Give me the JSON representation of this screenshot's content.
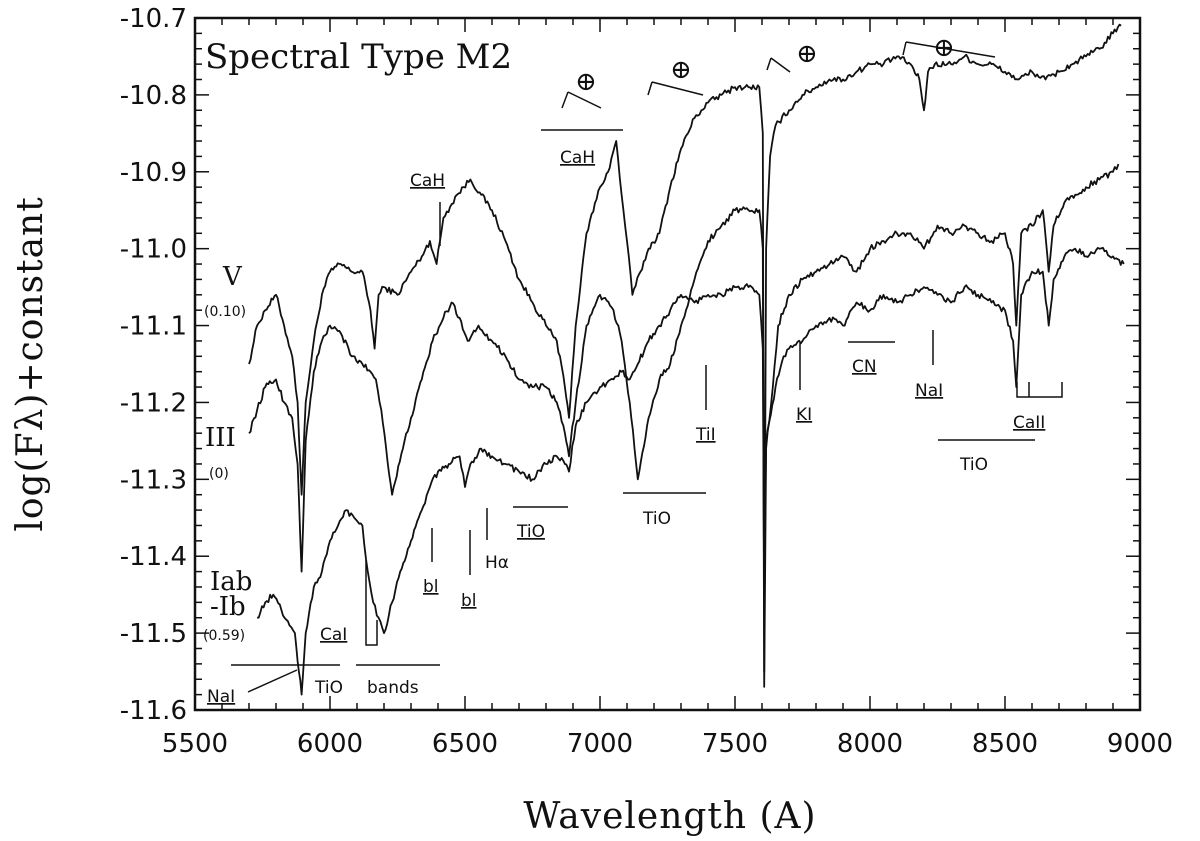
{
  "chart_data": {
    "type": "line",
    "title": "Spectral Type M2",
    "xlabel": "Wavelength (A)",
    "ylabel": "log(Fλ)+constant",
    "xlim": [
      5500,
      9000
    ],
    "ylim": [
      -11.6,
      -10.7
    ],
    "xticks": [
      "5500",
      "6000",
      "6500",
      "7000",
      "7500",
      "8000",
      "8500",
      "9000"
    ],
    "yticks": [
      "-10.7",
      "-10.8",
      "-10.9",
      "-11.0",
      "-11.1",
      "-11.2",
      "-11.3",
      "-11.4",
      "-11.5",
      "-11.6"
    ],
    "grid": false,
    "series": [
      {
        "name": "V",
        "offset": "(0.10)",
        "x": [
          5700,
          5730,
          5760,
          5800,
          5830,
          5860,
          5880,
          5895,
          5910,
          5940,
          5970,
          6000,
          6040,
          6080,
          6120,
          6150,
          6165,
          6180,
          6200,
          6250,
          6300,
          6340,
          6370,
          6395,
          6420,
          6470,
          6520,
          6560,
          6600,
          6650,
          6700,
          6750,
          6800,
          6840,
          6870,
          6885,
          6910,
          6950,
          7000,
          7030,
          7060,
          7080,
          7100,
          7120,
          7150,
          7180,
          7220,
          7260,
          7300,
          7350,
          7400,
          7450,
          7500,
          7550,
          7590,
          7603,
          7608,
          7615,
          7630,
          7650,
          7700,
          7750,
          7800,
          7850,
          7900,
          7950,
          8000,
          8050,
          8100,
          8150,
          8183,
          8200,
          8215,
          8240,
          8300,
          8350,
          8400,
          8450,
          8500,
          8550,
          8600,
          8650,
          8700,
          8750,
          8800,
          8850,
          8900,
          8930
        ],
        "y": [
          -11.15,
          -11.1,
          -11.08,
          -11.06,
          -11.1,
          -11.14,
          -11.2,
          -11.32,
          -11.2,
          -11.12,
          -11.06,
          -11.03,
          -11.02,
          -11.03,
          -11.03,
          -11.08,
          -11.13,
          -11.06,
          -11.05,
          -11.06,
          -11.03,
          -11.01,
          -10.99,
          -11.02,
          -10.96,
          -10.93,
          -10.91,
          -10.93,
          -10.95,
          -10.99,
          -11.04,
          -11.07,
          -11.1,
          -11.12,
          -11.18,
          -11.22,
          -11.1,
          -10.98,
          -10.92,
          -10.9,
          -10.86,
          -10.93,
          -10.99,
          -11.06,
          -11.03,
          -11.0,
          -10.98,
          -10.92,
          -10.87,
          -10.83,
          -10.81,
          -10.8,
          -10.79,
          -10.79,
          -10.79,
          -10.85,
          -11.55,
          -11.0,
          -10.88,
          -10.84,
          -10.82,
          -10.8,
          -10.79,
          -10.78,
          -10.78,
          -10.77,
          -10.76,
          -10.76,
          -10.75,
          -10.76,
          -10.78,
          -10.82,
          -10.77,
          -10.76,
          -10.76,
          -10.75,
          -10.76,
          -10.76,
          -10.77,
          -10.78,
          -10.77,
          -10.78,
          -10.77,
          -10.76,
          -10.75,
          -10.74,
          -10.72,
          -10.71
        ]
      },
      {
        "name": "III",
        "offset": "(0)",
        "x": [
          5700,
          5730,
          5760,
          5800,
          5830,
          5860,
          5880,
          5895,
          5910,
          5940,
          5970,
          6000,
          6040,
          6080,
          6120,
          6150,
          6170,
          6190,
          6230,
          6270,
          6300,
          6340,
          6380,
          6420,
          6450,
          6480,
          6510,
          6550,
          6600,
          6650,
          6700,
          6750,
          6800,
          6840,
          6870,
          6885,
          6910,
          6950,
          7000,
          7050,
          7080,
          7110,
          7140,
          7180,
          7220,
          7260,
          7300,
          7350,
          7400,
          7450,
          7500,
          7550,
          7590,
          7603,
          7608,
          7615,
          7640,
          7660,
          7700,
          7750,
          7800,
          7850,
          7900,
          7950,
          8000,
          8050,
          8100,
          8150,
          8200,
          8250,
          8300,
          8350,
          8400,
          8450,
          8500,
          8530,
          8542,
          8560,
          8600,
          8640,
          8662,
          8680,
          8720,
          8760,
          8800,
          8850,
          8900,
          8920
        ],
        "y": [
          -11.24,
          -11.21,
          -11.18,
          -11.17,
          -11.2,
          -11.22,
          -11.28,
          -11.42,
          -11.25,
          -11.16,
          -11.12,
          -11.1,
          -11.11,
          -11.14,
          -11.15,
          -11.16,
          -11.17,
          -11.21,
          -11.32,
          -11.26,
          -11.22,
          -11.17,
          -11.12,
          -11.09,
          -11.07,
          -11.09,
          -11.12,
          -11.1,
          -11.12,
          -11.14,
          -11.17,
          -11.18,
          -11.18,
          -11.2,
          -11.24,
          -11.27,
          -11.2,
          -11.1,
          -11.06,
          -11.08,
          -11.12,
          -11.2,
          -11.3,
          -11.22,
          -11.17,
          -11.15,
          -11.1,
          -11.04,
          -10.99,
          -10.97,
          -10.95,
          -10.95,
          -10.95,
          -11.0,
          -11.57,
          -11.26,
          -11.18,
          -11.1,
          -11.06,
          -11.04,
          -11.03,
          -11.02,
          -11.01,
          -11.03,
          -11.0,
          -10.99,
          -10.98,
          -10.98,
          -11.0,
          -10.97,
          -10.98,
          -10.97,
          -10.98,
          -10.99,
          -10.98,
          -11.02,
          -11.1,
          -10.98,
          -10.97,
          -10.95,
          -11.03,
          -10.97,
          -10.94,
          -10.93,
          -10.92,
          -10.91,
          -10.9,
          -10.89
        ]
      },
      {
        "name": "Iab-Ib",
        "offset": "(0.59)",
        "x": [
          5730,
          5760,
          5790,
          5820,
          5850,
          5870,
          5885,
          5895,
          5910,
          5940,
          5970,
          6000,
          6030,
          6060,
          6090,
          6120,
          6140,
          6160,
          6180,
          6200,
          6230,
          6260,
          6300,
          6340,
          6370,
          6400,
          6440,
          6480,
          6500,
          6520,
          6560,
          6600,
          6650,
          6700,
          6750,
          6800,
          6840,
          6870,
          6885,
          6910,
          6950,
          7000,
          7050,
          7080,
          7110,
          7140,
          7180,
          7220,
          7260,
          7300,
          7350,
          7400,
          7450,
          7500,
          7550,
          7590,
          7603,
          7608,
          7615,
          7650,
          7680,
          7700,
          7750,
          7800,
          7850,
          7900,
          7950,
          8000,
          8050,
          8100,
          8150,
          8200,
          8250,
          8300,
          8350,
          8400,
          8450,
          8500,
          8530,
          8542,
          8560,
          8600,
          8640,
          8662,
          8680,
          8720,
          8760,
          8800,
          8850,
          8900,
          8940
        ],
        "y": [
          -11.48,
          -11.46,
          -11.45,
          -11.47,
          -11.49,
          -11.5,
          -11.55,
          -11.58,
          -11.5,
          -11.44,
          -11.42,
          -11.38,
          -11.36,
          -11.34,
          -11.35,
          -11.36,
          -11.42,
          -11.46,
          -11.48,
          -11.5,
          -11.46,
          -11.42,
          -11.38,
          -11.34,
          -11.31,
          -11.29,
          -11.28,
          -11.27,
          -11.31,
          -11.28,
          -11.26,
          -11.27,
          -11.28,
          -11.29,
          -11.3,
          -11.28,
          -11.27,
          -11.28,
          -11.29,
          -11.23,
          -11.2,
          -11.18,
          -11.17,
          -11.16,
          -11.17,
          -11.15,
          -11.12,
          -11.1,
          -11.08,
          -11.06,
          -11.07,
          -11.06,
          -11.06,
          -11.05,
          -11.05,
          -11.06,
          -11.13,
          -11.45,
          -11.25,
          -11.18,
          -11.14,
          -11.13,
          -11.12,
          -11.1,
          -11.09,
          -11.1,
          -11.07,
          -11.08,
          -11.06,
          -11.07,
          -11.06,
          -11.05,
          -11.06,
          -11.07,
          -11.05,
          -11.06,
          -11.07,
          -11.08,
          -11.12,
          -11.18,
          -11.06,
          -11.03,
          -11.03,
          -11.1,
          -11.04,
          -11.01,
          -11.0,
          -11.01,
          -11.0,
          -11.01,
          -11.02
        ]
      }
    ],
    "annotations": {
      "lines": [
        {
          "label": "CaH",
          "underline": true
        },
        {
          "label": "CaH",
          "underline": true
        },
        {
          "label": "TiI",
          "underline": true
        },
        {
          "label": "KI",
          "underline": true
        },
        {
          "label": "CN",
          "underline": true
        },
        {
          "label": "NaI",
          "underline": true
        },
        {
          "label": "CaII",
          "underline": true
        },
        {
          "label": "TiO",
          "underline": true
        },
        {
          "label": "bl",
          "underline": true
        },
        {
          "label": "bl",
          "underline": true
        },
        {
          "label": "Hα",
          "underline": false
        },
        {
          "label": "CaI",
          "underline": true
        },
        {
          "label": "NaI",
          "underline": true
        }
      ],
      "bands": [
        {
          "label": "TiO"
        },
        {
          "label": "TiO"
        },
        {
          "label": "TiO"
        },
        {
          "label": "bands"
        }
      ],
      "telluric": "⊕"
    }
  }
}
